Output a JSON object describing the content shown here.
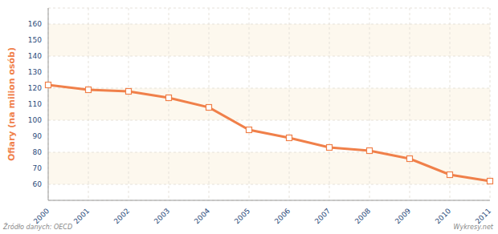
{
  "chart_data": {
    "type": "line",
    "y_label": "Ofiary (na milion osób)",
    "source": "Źródło danych: OECD",
    "credit": "Wykresy.net",
    "categories": [
      "2000",
      "2001",
      "2002",
      "2003",
      "2004",
      "2005",
      "2006",
      "2007",
      "2008",
      "2009",
      "2010",
      "2011"
    ],
    "values": [
      122,
      119,
      118,
      114,
      108,
      94,
      89,
      83,
      81,
      76,
      66,
      62
    ],
    "color": "#f0804a",
    "marker": "square",
    "ylim": [
      50,
      170
    ],
    "yticks": [
      60,
      70,
      80,
      90,
      100,
      110,
      120,
      130,
      140,
      150,
      160
    ],
    "grid": true
  }
}
